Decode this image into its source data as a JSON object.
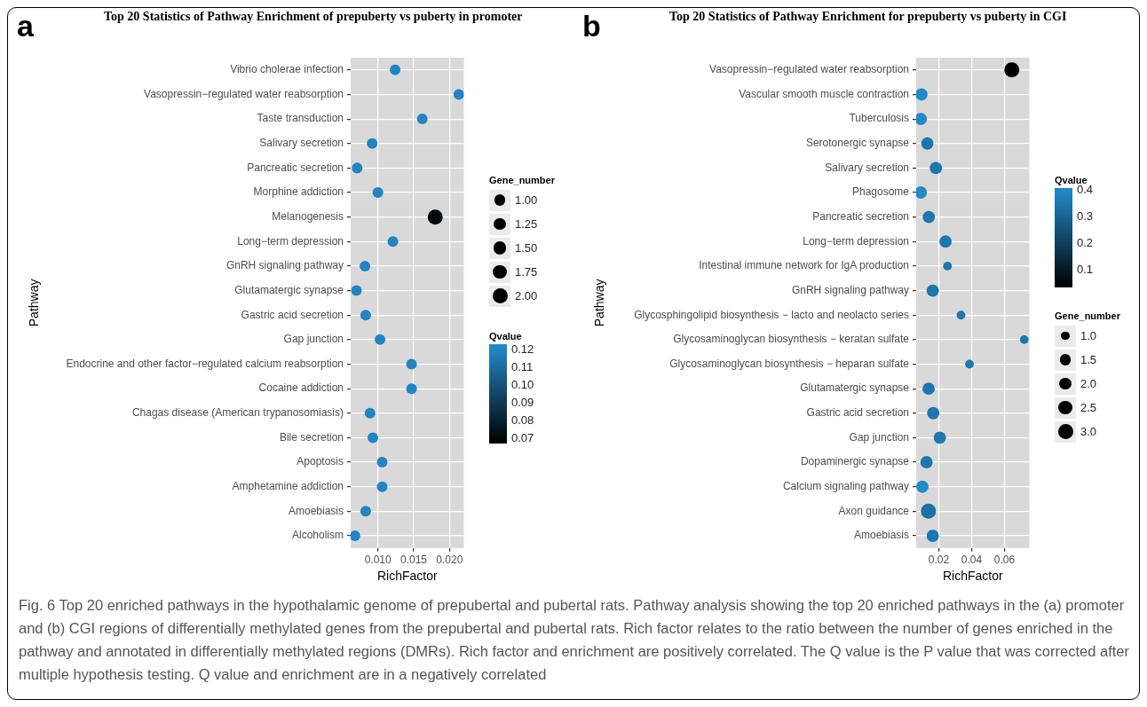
{
  "chart_data": [
    {
      "type": "bubble",
      "title": "Top 20 Statistics of Pathway Enrichment of prepuberty vs puberty in promoter",
      "xlabel": "RichFactor",
      "ylabel": "Pathway",
      "orientation": "horizontal",
      "grid": true,
      "legend_title": "Gene_number",
      "clabel": "Qvalue",
      "categories": [
        "Vibrio cholerae infection",
        "Vasopressin−regulated water reabsorption",
        "Taste transduction",
        "Salivary secretion",
        "Pancreatic secretion",
        "Morphine addiction",
        "Melanogenesis",
        "Long−term depression",
        "GnRH signaling pathway",
        "Glutamatergic synapse",
        "Gastric acid secretion",
        "Gap junction",
        "Endocrine and other factor−regulated calcium reabsorption",
        "Cocaine addiction",
        "Chagas disease (American trypanosomiasis)",
        "Bile secretion",
        "Apoptosis",
        "Amphetamine addiction",
        "Amoebiasis",
        "Alcoholism"
      ],
      "series": [
        {
          "values": [
            0.0124,
            0.0213,
            0.0162,
            0.0092,
            0.0071,
            0.01,
            0.018,
            0.0121,
            0.0082,
            0.007,
            0.0083,
            0.0103,
            0.0147,
            0.0147,
            0.0089,
            0.0093,
            0.0106,
            0.0106,
            0.0083,
            0.0068
          ],
          "sizes": [
            1,
            1,
            1,
            1,
            1,
            1,
            2,
            1,
            1,
            1,
            1,
            1,
            1,
            1,
            1,
            1,
            1,
            1,
            1,
            1
          ],
          "cvalues": [
            0.12,
            0.12,
            0.12,
            0.12,
            0.12,
            0.12,
            0.07,
            0.12,
            0.12,
            0.12,
            0.12,
            0.12,
            0.12,
            0.12,
            0.12,
            0.12,
            0.12,
            0.12,
            0.12,
            0.12
          ]
        }
      ],
      "xlim": [
        0.0062,
        0.022
      ],
      "xticks": [
        {
          "value": 0.01,
          "label": "0.010"
        },
        {
          "value": 0.015,
          "label": "0.015"
        },
        {
          "value": 0.02,
          "label": "0.020"
        }
      ],
      "size_legend": [
        {
          "value": 1,
          "label": "1.00"
        },
        {
          "value": 1.25,
          "label": "1.25"
        },
        {
          "value": 1.5,
          "label": "1.50"
        },
        {
          "value": 1.75,
          "label": "1.75"
        },
        {
          "value": 2,
          "label": "2.00"
        }
      ],
      "clim": [
        0.067,
        0.123
      ],
      "cticks": [
        {
          "value": 0.07,
          "label": "0.07"
        },
        {
          "value": 0.08,
          "label": "0.08"
        },
        {
          "value": 0.09,
          "label": "0.09"
        },
        {
          "value": 0.1,
          "label": "0.10"
        },
        {
          "value": 0.11,
          "label": "0.11"
        },
        {
          "value": 0.12,
          "label": "0.12"
        }
      ],
      "annotations": [
        "a",
        "Fig. 6 Top 20 enriched pathways in the hypothalamic genome of prepubertal and pubertal rats. Pathway analysis showing the top 20 enriched pathways in the (a) promoter and (b) CGI regions of differentially methylated genes from the prepubertal and pubertal rats. Rich factor relates to the ratio between the number of genes enriched in the pathway and annotated in differentially methylated regions (DMRs). Rich factor and enrichment are positively correlated. The Q value is the P value that was corrected after multiple hypothesis testing. Q value and enrichment are in a negatively correlated"
      ]
    },
    {
      "type": "bubble",
      "title": "Top 20 Statistics of Pathway Enrichment for prepuberty vs puberty in CGI",
      "xlabel": "RichFactor",
      "ylabel": "Pathway",
      "orientation": "horizontal",
      "grid": true,
      "clabel": "Qvalue",
      "legend_title": "Gene_number",
      "categories": [
        "Vasopressin−regulated water reabsorption",
        "Vascular smooth muscle contraction",
        "Tuberculosis",
        "Serotonergic synapse",
        "Salivary secretion",
        "Phagosome",
        "Pancreatic secretion",
        "Long−term depression",
        "Intestinal immune network for IgA production",
        "GnRH signaling pathway",
        "Glycosphingolipid biosynthesis − lacto and neolacto series",
        "Glycosaminoglycan biosynthesis − keratan sulfate",
        "Glycosaminoglycan biosynthesis − heparan sulfate",
        "Glutamatergic synapse",
        "Gastric acid secretion",
        "Gap junction",
        "Dopaminergic synapse",
        "Calcium signaling pathway",
        "Axon guidance",
        "Amoebiasis"
      ],
      "series": [
        {
          "values": [
            0.0645,
            0.0094,
            0.009,
            0.013,
            0.0182,
            0.009,
            0.0139,
            0.0241,
            0.0253,
            0.0163,
            0.0335,
            0.0721,
            0.0387,
            0.0138,
            0.0166,
            0.0206,
            0.0125,
            0.01,
            0.0137,
            0.0163
          ],
          "sizes": [
            3,
            2,
            2,
            2,
            2,
            2,
            2,
            2,
            1,
            2,
            1,
            1,
            1,
            2,
            2,
            2,
            2,
            2,
            3,
            2
          ],
          "cvalues": [
            0.04,
            0.4,
            0.4,
            0.35,
            0.35,
            0.4,
            0.35,
            0.35,
            0.35,
            0.35,
            0.35,
            0.35,
            0.35,
            0.35,
            0.35,
            0.35,
            0.35,
            0.4,
            0.33,
            0.35
          ]
        }
      ],
      "xlim": [
        0.0062,
        0.0752
      ],
      "xticks": [
        0.02,
        0.04,
        0.06
      ],
      "clim": [
        0.034,
        0.405
      ],
      "cticks": [
        0.1,
        0.2,
        0.3,
        0.4
      ],
      "size_legend": [
        {
          "value": 1,
          "label": "1.0"
        },
        {
          "value": 1.5,
          "label": "1.5"
        },
        {
          "value": 2,
          "label": "2.0"
        },
        {
          "value": 2.5,
          "label": "2.5"
        },
        {
          "value": 3,
          "label": "3.0"
        }
      ],
      "annotations": [
        "b"
      ]
    }
  ]
}
